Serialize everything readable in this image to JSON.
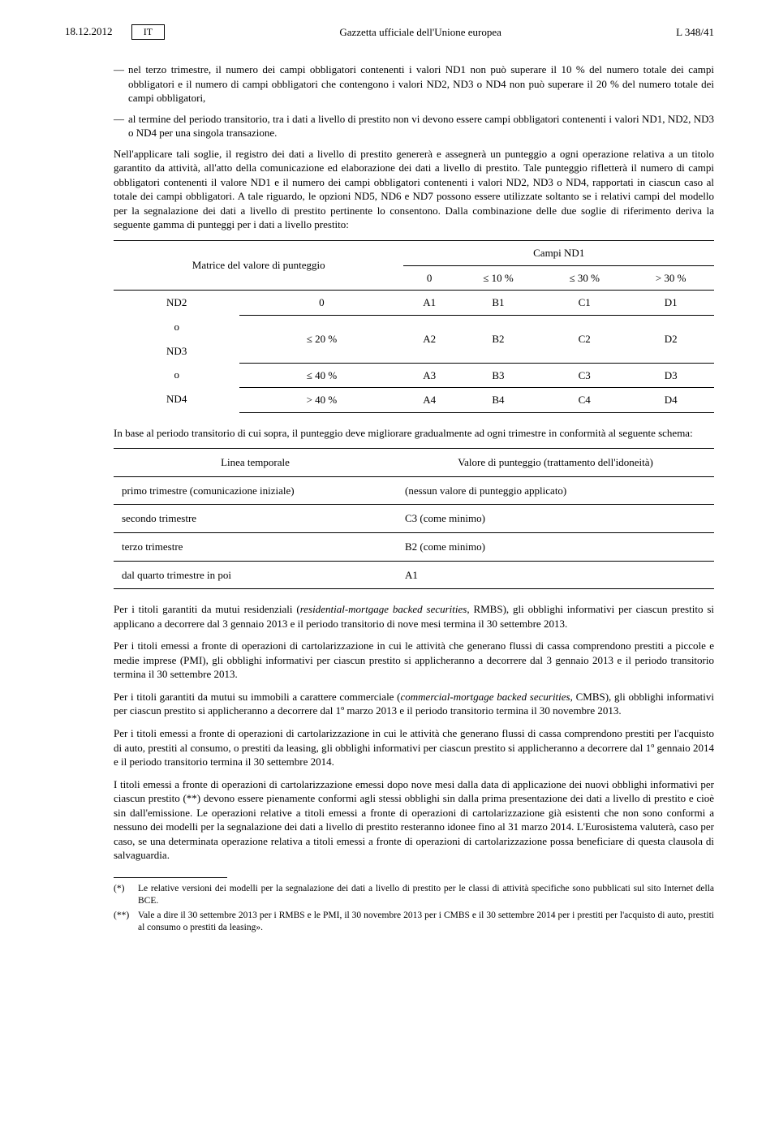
{
  "header": {
    "date": "18.12.2012",
    "lang": "IT",
    "center": "Gazzetta ufficiale dell'Unione europea",
    "right": "L 348/41"
  },
  "bullets": [
    "nel terzo trimestre, il numero dei campi obbligatori contenenti i valori ND1 non può superare il 10 % del numero totale dei campi obbligatori e il numero di campi obbligatori che contengono i valori ND2, ND3 o ND4 non può superare il 20 % del numero totale dei campi obbligatori,",
    "al termine del periodo transitorio, tra i dati a livello di prestito non vi devono essere campi obbligatori contenenti i valori ND1, ND2, ND3 o ND4 per una singola transazione."
  ],
  "para1": "Nell'applicare tali soglie, il registro dei dati a livello di prestito genererà e assegnerà un punteggio a ogni operazione relativa a un titolo garantito da attività, all'atto della comunicazione ed elaborazione dei dati a livello di prestito. Tale punteggio rifletterà il numero di campi obbligatori contenenti il valore ND1 e il numero dei campi obbligatori contenenti i valori ND2, ND3 o ND4, rapportati in ciascun caso al totale dei campi obbligatori. A tale riguardo, le opzioni ND5, ND6 e ND7 possono essere utilizzate soltanto se i relativi campi del modello per la segnalazione dei dati a livello di prestito pertinente lo consentono. Dalla combinazione delle due soglie di riferimento deriva la seguente gamma di punteggi per i dati a livello prestito:",
  "matrix": {
    "left_header": "Matrice del valore di punteggio",
    "top_header": "Campi ND1",
    "col_labels": [
      "0",
      "≤ 10 %",
      "≤ 30 %",
      "> 30 %"
    ],
    "row_group_labels": [
      "ND2",
      "o",
      "ND3",
      "o",
      "ND4"
    ],
    "rows": [
      {
        "label": "0",
        "cells": [
          "A1",
          "B1",
          "C1",
          "D1"
        ]
      },
      {
        "label": "≤ 20 %",
        "cells": [
          "A2",
          "B2",
          "C2",
          "D2"
        ]
      },
      {
        "label": "≤ 40 %",
        "cells": [
          "A3",
          "B3",
          "C3",
          "D3"
        ]
      },
      {
        "label": "> 40 %",
        "cells": [
          "A4",
          "B4",
          "C4",
          "D4"
        ]
      }
    ]
  },
  "para2": "In base al periodo transitorio di cui sopra, il punteggio deve migliorare gradualmente ad ogni trimestre in conformità al seguente schema:",
  "timeline": {
    "headers": [
      "Linea temporale",
      "Valore di punteggio (trattamento dell'idoneità)"
    ],
    "rows": [
      [
        "primo trimestre (comunicazione iniziale)",
        "(nessun valore di punteggio applicato)"
      ],
      [
        "secondo trimestre",
        "C3 (come minimo)"
      ],
      [
        "terzo trimestre",
        "B2 (come minimo)"
      ],
      [
        "dal quarto trimestre in poi",
        "A1"
      ]
    ]
  },
  "para3": "Per i titoli garantiti da mutui residenziali (residential-mortgage backed securities, RMBS), gli obblighi informativi per ciascun prestito si applicano a decorrere dal 3 gennaio 2013 e il periodo transitorio di nove mesi termina il 30 settembre 2013.",
  "para4": "Per i titoli emessi a fronte di operazioni di cartolarizzazione in cui le attività che generano flussi di cassa comprendono prestiti a piccole e medie imprese (PMI), gli obblighi informativi per ciascun prestito si applicheranno a decorrere dal 3 gennaio 2013 e il periodo transitorio termina il 30 settembre 2013.",
  "para5": "Per i titoli garantiti da mutui su immobili a carattere commerciale (commercial-mortgage backed securities, CMBS), gli obblighi informativi per ciascun prestito si applicheranno a decorrere dal 1º marzo 2013 e il periodo transitorio termina il 30 novembre 2013.",
  "para6": "Per i titoli emessi a fronte di operazioni di cartolarizzazione in cui le attività che generano flussi di cassa comprendono prestiti per l'acquisto di auto, prestiti al consumo, o prestiti da leasing, gli obblighi informativi per ciascun prestito si applicheranno a decorrere dal 1º gennaio 2014 e il periodo transitorio termina il 30 settembre 2014.",
  "para7": "I titoli emessi a fronte di operazioni di cartolarizzazione emessi dopo nove mesi dalla data di applicazione dei nuovi obblighi informativi per ciascun prestito (**) devono essere pienamente conformi agli stessi obblighi sin dalla prima presentazione dei dati a livello di prestito e cioè sin dall'emissione. Le operazioni relative a titoli emessi a fronte di operazioni di cartolarizzazione già esistenti che non sono conformi a nessuno dei modelli per la segnalazione dei dati a livello di prestito resteranno idonee fino al 31 marzo 2014. L'Eurosistema valuterà, caso per caso, se una determinata operazione relativa a titoli emessi a fronte di operazioni di cartolarizzazione possa beneficiare di questa clausola di salvaguardia.",
  "footnotes": [
    {
      "mark": "(*)",
      "text": "Le relative versioni dei modelli per la segnalazione dei dati a livello di prestito per le classi di attività specifiche sono pubblicati sul sito Internet della BCE."
    },
    {
      "mark": "(**)",
      "text": "Vale a dire il 30 settembre 2013 per i RMBS e le PMI, il 30 novembre 2013 per i CMBS e il 30 settembre 2014 per i prestiti per l'acquisto di auto, prestiti al consumo o prestiti da leasing»."
    }
  ]
}
